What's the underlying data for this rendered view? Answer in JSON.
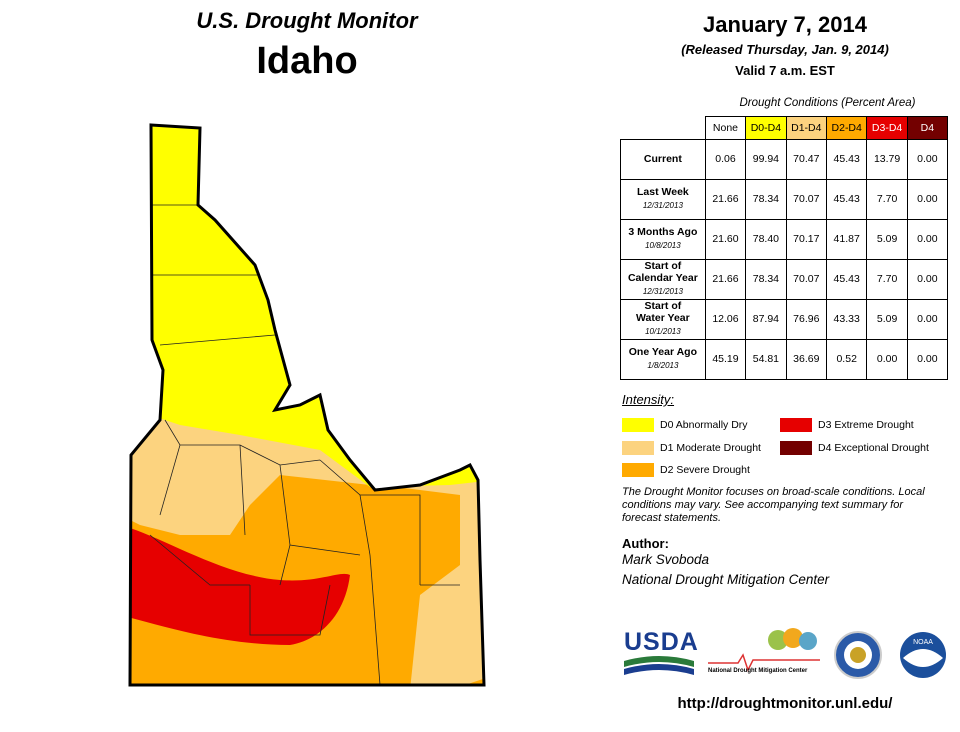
{
  "header": {
    "title": "U.S. Drought Monitor",
    "state": "Idaho",
    "date": "January 7, 2014",
    "released": "(Released Thursday, Jan. 9, 2014)",
    "valid": "Valid 7 a.m. EST"
  },
  "table": {
    "caption": "Drought Conditions (Percent Area)",
    "columns": [
      {
        "label": "None",
        "color": "#ffffff",
        "text": "#000000"
      },
      {
        "label": "D0-D4",
        "color": "#ffff00",
        "text": "#000000"
      },
      {
        "label": "D1-D4",
        "color": "#fcd37f",
        "text": "#000000"
      },
      {
        "label": "D2-D4",
        "color": "#ffaa00",
        "text": "#000000"
      },
      {
        "label": "D3-D4",
        "color": "#e60000",
        "text": "#ffffff"
      },
      {
        "label": "D4",
        "color": "#730000",
        "text": "#ffffff"
      }
    ],
    "rows": [
      {
        "label": [
          "Current"
        ],
        "date": null,
        "values": [
          "0.06",
          "99.94",
          "70.47",
          "45.43",
          "13.79",
          "0.00"
        ]
      },
      {
        "label": [
          "Last Week"
        ],
        "date": "12/31/2013",
        "values": [
          "21.66",
          "78.34",
          "70.07",
          "45.43",
          "7.70",
          "0.00"
        ]
      },
      {
        "label": [
          "3 Months Ago"
        ],
        "date": "10/8/2013",
        "values": [
          "21.60",
          "78.40",
          "70.17",
          "41.87",
          "5.09",
          "0.00"
        ]
      },
      {
        "label": [
          "Start of",
          "Calendar Year"
        ],
        "date": "12/31/2013",
        "values": [
          "21.66",
          "78.34",
          "70.07",
          "45.43",
          "7.70",
          "0.00"
        ]
      },
      {
        "label": [
          "Start of",
          "Water Year"
        ],
        "date": "10/1/2013",
        "values": [
          "12.06",
          "87.94",
          "76.96",
          "43.33",
          "5.09",
          "0.00"
        ]
      },
      {
        "label": [
          "One Year Ago"
        ],
        "date": "1/8/2013",
        "values": [
          "45.19",
          "54.81",
          "36.69",
          "0.52",
          "0.00",
          "0.00"
        ]
      }
    ]
  },
  "legend": {
    "title": "Intensity:",
    "items": [
      {
        "label": "D0 Abnormally Dry",
        "color": "#ffff00"
      },
      {
        "label": "D1 Moderate Drought",
        "color": "#fcd37f"
      },
      {
        "label": "D2 Severe Drought",
        "color": "#ffaa00"
      },
      {
        "label": "D3 Extreme Drought",
        "color": "#e60000"
      },
      {
        "label": "D4 Exceptional Drought",
        "color": "#730000"
      }
    ]
  },
  "note": "The Drought Monitor focuses on broad-scale conditions. Local conditions may vary. See accompanying text summary for forecast statements.",
  "author": {
    "label": "Author:",
    "name": "Mark Svoboda",
    "org": "National Drought Mitigation Center"
  },
  "logos": {
    "usda": "USDA",
    "ndmc": "National Drought Mitigation Center",
    "noaa": "NOAA"
  },
  "url": "http://droughtmonitor.unl.edu/"
}
